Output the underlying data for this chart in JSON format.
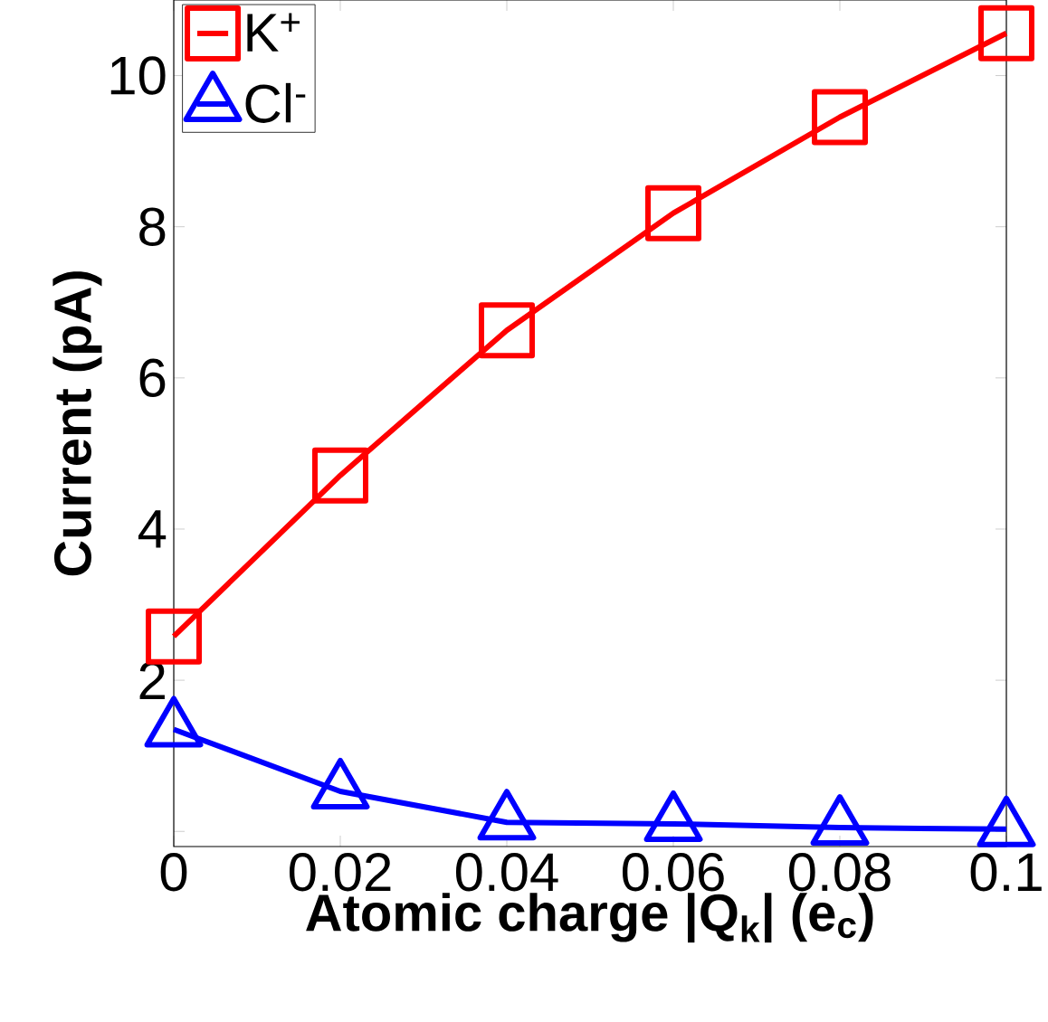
{
  "chart_data": {
    "type": "line",
    "xlabel": "Atomic charge |Q$_{k}$| (e$_{c}$)",
    "ylabel": "Current (pA)",
    "x": [
      0,
      0.02,
      0.04,
      0.06,
      0.08,
      0.1
    ],
    "series": [
      {
        "name": "K$^{+}$",
        "color": "#ff0000",
        "marker": "square",
        "values": [
          2.58,
          4.71,
          6.63,
          8.18,
          9.45,
          10.56
        ]
      },
      {
        "name": "Cl$^{-}$",
        "color": "#0000ff",
        "marker": "triangle",
        "values": [
          1.35,
          0.53,
          0.12,
          0.1,
          0.05,
          0.03
        ]
      }
    ],
    "xlim": [
      0,
      0.1
    ],
    "ylim": [
      -0.2,
      11
    ],
    "xticks": [
      0,
      0.02,
      0.04,
      0.06,
      0.08,
      0.1
    ],
    "yticks": [
      {
        "value": 0,
        "label": null
      },
      2,
      4,
      6,
      8,
      10
    ],
    "legend": "top left",
    "grid": false,
    "line_style": "solid"
  }
}
